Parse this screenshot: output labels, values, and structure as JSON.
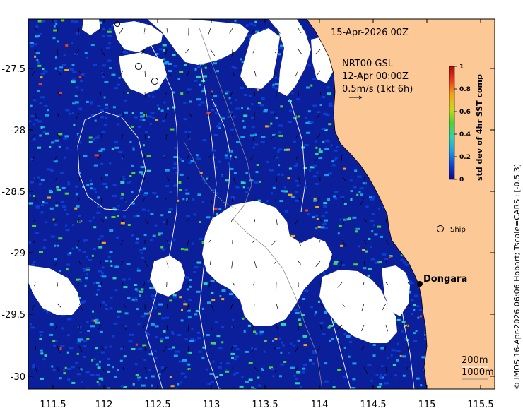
{
  "header": {
    "date": "15-Apr-2026 00Z",
    "product": "NRT00 GSL",
    "product_time": "12-Apr 00:00Z",
    "vector_scale": "0.5m/s (1kt 6h)"
  },
  "colorbar": {
    "title": "std dev of 4hr SST comp",
    "ticks": [
      "0",
      "0.2",
      "0.4",
      "0.6",
      "0.8",
      "1"
    ],
    "colors": [
      "#08088c",
      "#0a3fd6",
      "#1a9ee8",
      "#2bd2b4",
      "#4ed138",
      "#c8d81e",
      "#f2a41a",
      "#e8401c",
      "#b00808"
    ]
  },
  "axes": {
    "x_ticks": [
      "111.5",
      "112",
      "112.5",
      "113",
      "113.5",
      "114",
      "114.5",
      "115",
      "115.5"
    ],
    "y_ticks": [
      "-27.5",
      "-28",
      "-28.5",
      "-29",
      "-29.5",
      "-30"
    ]
  },
  "places": {
    "town": "Dongara",
    "ship": "Ship"
  },
  "isobaths": {
    "first": "200m",
    "second": "1000m"
  },
  "credit": "© IMOS 16-Apr-2026 06:06 Hobart; Tscale=CARS+[-0.5 3]",
  "colors": {
    "land": "#fcc896",
    "ocean_base": "#0a1e96",
    "cloud": "#ffffff"
  }
}
